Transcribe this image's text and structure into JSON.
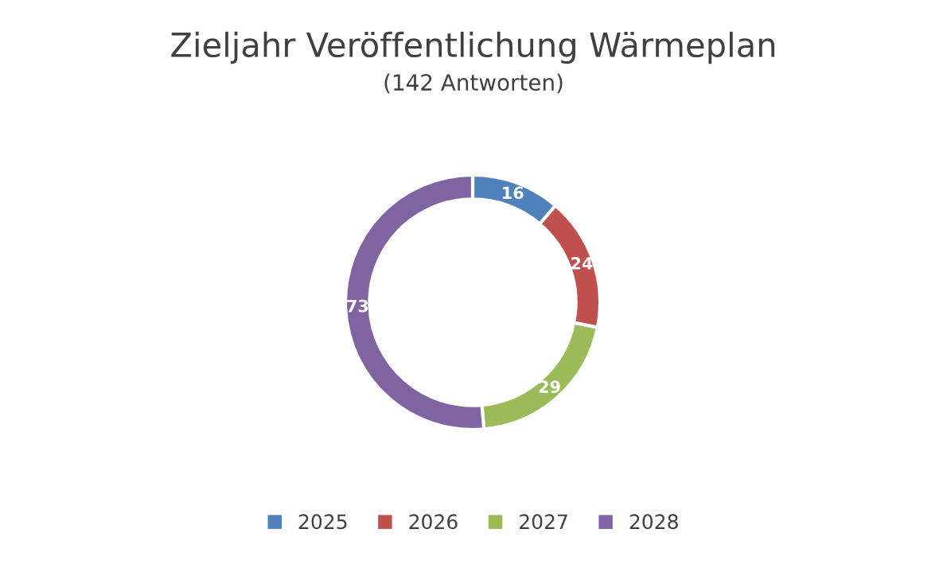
{
  "chart_data": {
    "type": "donut",
    "title": "Zieljahr Veröffentlichung Wärmeplan",
    "subtitle": "(142 Antworten)",
    "categories": [
      "2025",
      "2026",
      "2027",
      "2028"
    ],
    "values": [
      16,
      24,
      29,
      73
    ],
    "colors": [
      "#4f81bd",
      "#c0504d",
      "#9bbb59",
      "#8064a2"
    ],
    "data_labels": true,
    "legend": "bottom"
  }
}
